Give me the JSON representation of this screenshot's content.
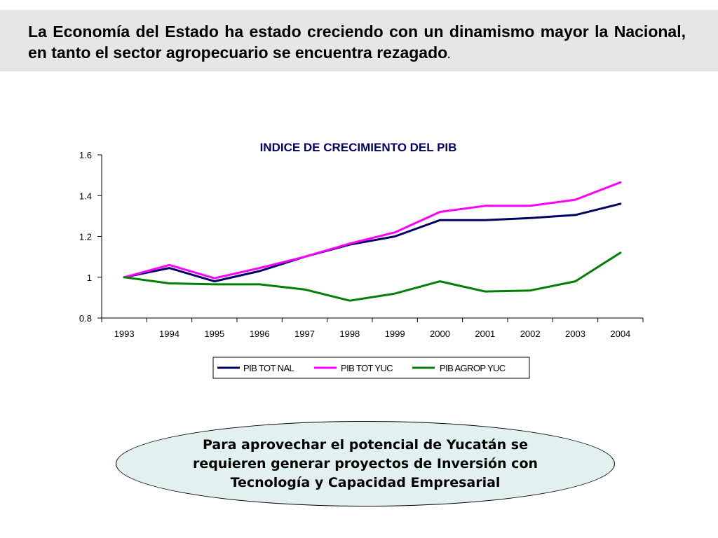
{
  "header": {
    "text": "La Economía del Estado ha estado creciendo con un dinamismo mayor la Nacional, en tanto el sector agropecuario se encuentra rezagado",
    "trailing": "."
  },
  "chart_data": {
    "type": "line",
    "title": "INDICE DE CRECIMIENTO DEL PIB",
    "xlabel": "",
    "ylabel": "",
    "x": [
      "1993",
      "1994",
      "1995",
      "1996",
      "1997",
      "1998",
      "1999",
      "2000",
      "2001",
      "2002",
      "2003",
      "2004"
    ],
    "ylim": [
      0.8,
      1.6
    ],
    "yticks": [
      0.8,
      1,
      1.2,
      1.4,
      1.6
    ],
    "ytick_labels": [
      "0.8",
      "1",
      "1.2",
      "1.4",
      "1.6"
    ],
    "grid": false,
    "legend_position": "bottom",
    "series": [
      {
        "name": "PIB TOT NAL",
        "color": "#000066",
        "values": [
          1.0,
          1.045,
          0.98,
          1.03,
          1.1,
          1.16,
          1.2,
          1.28,
          1.28,
          1.29,
          1.305,
          1.36
        ]
      },
      {
        "name": "PIB TOT YUC",
        "color": "#ff00ff",
        "values": [
          1.0,
          1.06,
          0.995,
          1.045,
          1.1,
          1.165,
          1.22,
          1.32,
          1.35,
          1.35,
          1.38,
          1.465
        ]
      },
      {
        "name": "PIB AGROP YUC",
        "color": "#008000",
        "values": [
          1.0,
          0.97,
          0.965,
          0.965,
          0.94,
          0.885,
          0.92,
          0.98,
          0.93,
          0.935,
          0.98,
          1.12
        ]
      }
    ]
  },
  "callout": {
    "text": "Para aprovechar el potencial de Yucatán se requieren generar proyectos de Inversión con Tecnología y Capacidad Empresarial"
  }
}
